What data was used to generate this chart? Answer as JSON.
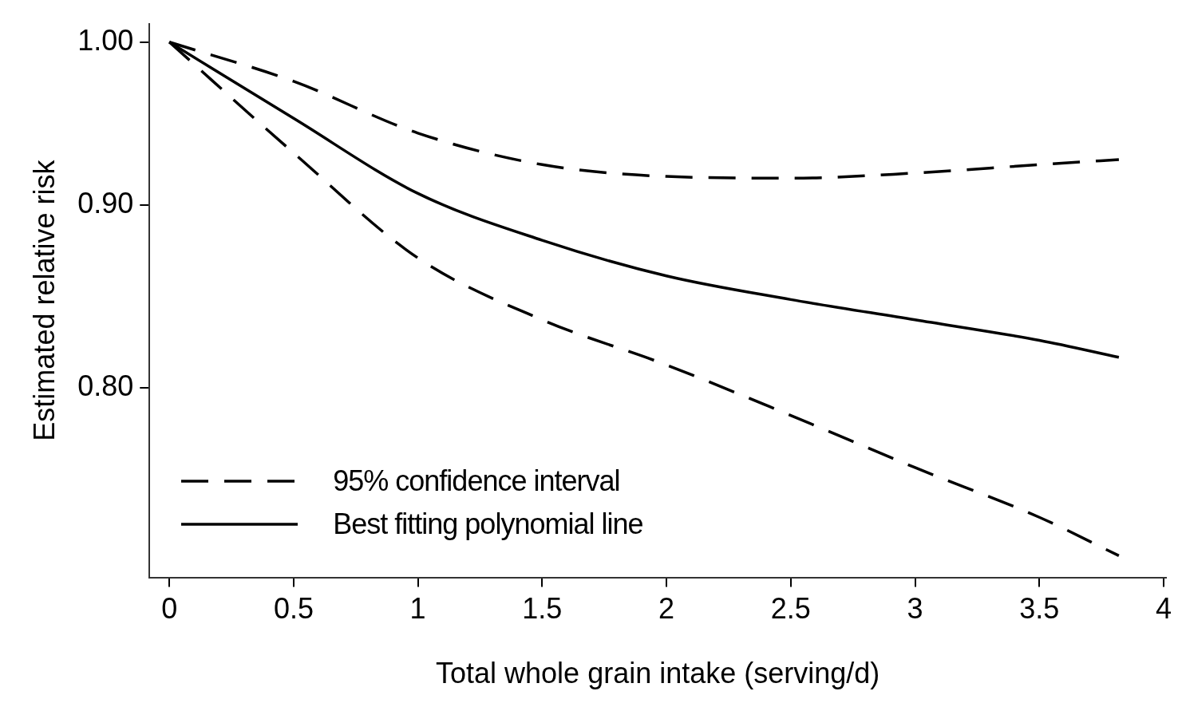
{
  "chart_data": {
    "type": "line",
    "xlabel": "Total whole grain intake (serving/d)",
    "ylabel": "Estimated relative risk",
    "log": "y",
    "grid": false,
    "legend": "bottom left",
    "marker": "none",
    "x": [
      0,
      0.5,
      1,
      1.5,
      2,
      2.5,
      3,
      3.5,
      3.82
    ],
    "xlim": [
      -0.08,
      4.01
    ],
    "xticks": [
      0,
      0.5,
      1,
      1.5,
      2,
      2.5,
      3,
      3.5,
      4
    ],
    "ylim": [
      0.708,
      1.012
    ],
    "yticks": [
      {
        "value": 1,
        "label": "1.00"
      },
      {
        "value": 0.9,
        "label": "0.90"
      },
      {
        "value": 0.8,
        "label": "0.80"
      }
    ],
    "series": [
      {
        "name": "95% confidence interval",
        "color": "#000000",
        "line_style": "dashed",
        "values": [
          1,
          0.975,
          0.943,
          0.924,
          0.917,
          0.916,
          0.919,
          0.924,
          0.927
        ]
      },
      {
        "color": "#000000",
        "line_style": "dashed",
        "values": [
          1,
          0.931,
          0.87,
          0.836,
          0.812,
          0.786,
          0.76,
          0.736,
          0.718
        ]
      },
      {
        "name": "Best fitting polynomial line",
        "color": "#000000",
        "line_style": "solid",
        "values": [
          1,
          0.952,
          0.907,
          0.88,
          0.86,
          0.847,
          0.836,
          0.825,
          0.816
        ]
      }
    ]
  }
}
